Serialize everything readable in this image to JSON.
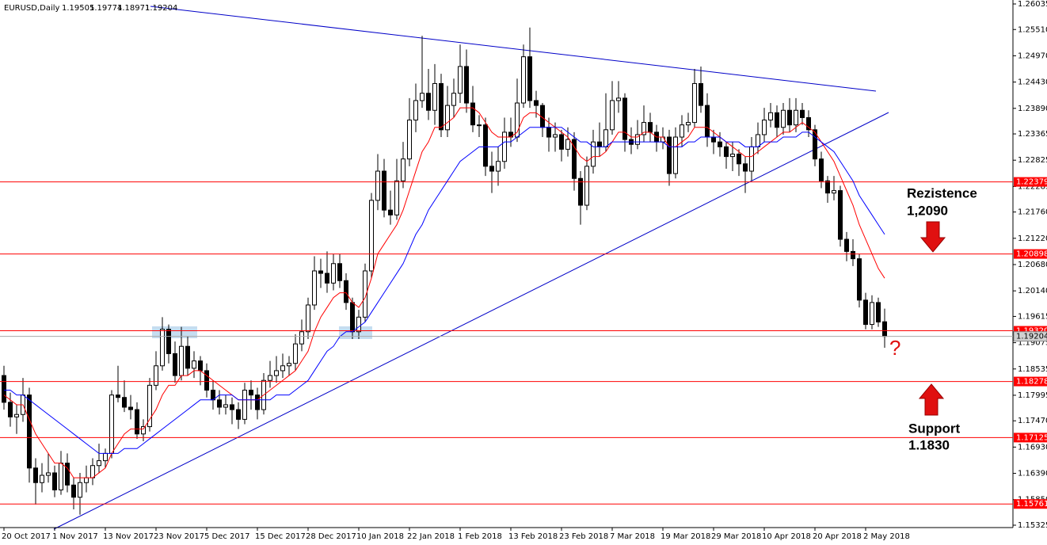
{
  "chart_data": {
    "type": "candlestick",
    "symbol": "EURUSD,Daily",
    "ylim": [
      1.15325,
      1.26035
    ],
    "yticks": [
      {
        "value": 1.26035,
        "label": "1.26035"
      },
      {
        "value": 1.2551,
        "label": "1.25510"
      },
      {
        "value": 1.2497,
        "label": "1.24970"
      },
      {
        "value": 1.2443,
        "label": "1.24430"
      },
      {
        "value": 1.2389,
        "label": "1.23890"
      },
      {
        "value": 1.23365,
        "label": "1.23365"
      },
      {
        "value": 1.22825,
        "label": "1.22825"
      },
      {
        "value": 1.22285,
        "label": "1.22285"
      },
      {
        "value": 1.2176,
        "label": "1.21760"
      },
      {
        "value": 1.2122,
        "label": "1.21220"
      },
      {
        "value": 1.2068,
        "label": "1.20680"
      },
      {
        "value": 1.2014,
        "label": "1.20140"
      },
      {
        "value": 1.19615,
        "label": "1.19615"
      },
      {
        "value": 1.19075,
        "label": "1.19075"
      },
      {
        "value": 1.18535,
        "label": "1.18535"
      },
      {
        "value": 1.17995,
        "label": "1.17995"
      },
      {
        "value": 1.1747,
        "label": "1.17470"
      },
      {
        "value": 1.1693,
        "label": "1.16930"
      },
      {
        "value": 1.1639,
        "label": "1.16390"
      },
      {
        "value": 1.1585,
        "label": "1.15850"
      },
      {
        "value": 1.15325,
        "label": "1.15325"
      }
    ],
    "levels": [
      1.22379,
      1.20898,
      {
        "value": 1.1932,
        "label": "1.19320"
      },
      1.18278,
      1.17125,
      1.15761
    ],
    "level_color": "#ff0000",
    "annotations": [
      "Rezistence",
      "1,2090",
      "Support",
      "1.1830",
      "?"
    ],
    "categories": [
      "20 Oct 2017",
      null,
      null,
      null,
      null,
      null,
      null,
      null,
      "1 Nov 2017",
      null,
      null,
      null,
      null,
      null,
      null,
      null,
      "13 Nov 2017",
      null,
      null,
      null,
      null,
      null,
      null,
      null,
      "23 Nov 2017",
      null,
      null,
      null,
      null,
      null,
      null,
      null,
      "5 Dec 2017",
      null,
      null,
      null,
      null,
      null,
      null,
      null,
      "15 Dec 2017",
      null,
      null,
      null,
      null,
      null,
      null,
      null,
      "28 Dec 2017",
      null,
      null,
      null,
      null,
      null,
      null,
      null,
      "10 Jan 2018",
      null,
      null,
      null,
      null,
      null,
      null,
      null,
      "22 Jan 2018",
      null,
      null,
      null,
      null,
      null,
      null,
      null,
      "1 Feb 2018",
      null,
      null,
      null,
      null,
      null,
      null,
      null,
      "13 Feb 2018",
      null,
      null,
      null,
      null,
      null,
      null,
      null,
      "23 Feb 2018",
      null,
      null,
      null,
      null,
      null,
      null,
      null,
      "7 Mar 2018",
      null,
      null,
      null,
      null,
      null,
      null,
      null,
      "19 Mar 2018",
      null,
      null,
      null,
      null,
      null,
      null,
      null,
      "29 Mar 2018",
      null,
      null,
      null,
      null,
      null,
      null,
      null,
      "10 Apr 2018",
      null,
      null,
      null,
      null,
      null,
      null,
      null,
      "20 Apr 2018",
      null,
      null,
      null,
      null,
      null,
      null,
      null,
      "2 May 2018",
      null,
      null,
      null
    ],
    "ohlc": [
      [
        1.184,
        1.186,
        1.177,
        1.1785
      ],
      [
        1.1785,
        1.1805,
        1.1735,
        1.1755
      ],
      [
        1.1755,
        1.178,
        1.172,
        1.176
      ],
      [
        1.176,
        1.1835,
        1.1745,
        1.18
      ],
      [
        1.18,
        1.1815,
        1.162,
        1.165
      ],
      [
        1.165,
        1.167,
        1.1575,
        1.162
      ],
      [
        1.162,
        1.166,
        1.16,
        1.1635
      ],
      [
        1.1635,
        1.168,
        1.162,
        1.164
      ],
      [
        1.164,
        1.1655,
        1.159,
        1.1605
      ],
      [
        1.1605,
        1.1685,
        1.1595,
        1.166
      ],
      [
        1.166,
        1.168,
        1.16,
        1.1615
      ],
      [
        1.1615,
        1.163,
        1.1565,
        1.159
      ],
      [
        1.159,
        1.164,
        1.1554,
        1.162
      ],
      [
        1.162,
        1.1655,
        1.16,
        1.163
      ],
      [
        1.163,
        1.167,
        1.1615,
        1.1655
      ],
      [
        1.1655,
        1.17,
        1.164,
        1.1665
      ],
      [
        1.1665,
        1.169,
        1.165,
        1.168
      ],
      [
        1.168,
        1.181,
        1.167,
        1.18
      ],
      [
        1.18,
        1.186,
        1.1785,
        1.1795
      ],
      [
        1.1795,
        1.183,
        1.1765,
        1.1775
      ],
      [
        1.1775,
        1.18,
        1.175,
        1.177
      ],
      [
        1.177,
        1.1785,
        1.171,
        1.172
      ],
      [
        1.172,
        1.175,
        1.1705,
        1.1735
      ],
      [
        1.1735,
        1.1835,
        1.1725,
        1.182
      ],
      [
        1.182,
        1.189,
        1.181,
        1.186
      ],
      [
        1.186,
        1.196,
        1.185,
        1.1935
      ],
      [
        1.1935,
        1.1945,
        1.1865,
        1.1885
      ],
      [
        1.1885,
        1.191,
        1.1825,
        1.184
      ],
      [
        1.184,
        1.194,
        1.183,
        1.19
      ],
      [
        1.19,
        1.192,
        1.184,
        1.1855
      ],
      [
        1.1855,
        1.189,
        1.1835,
        1.187
      ],
      [
        1.187,
        1.188,
        1.182,
        1.185
      ],
      [
        1.185,
        1.1865,
        1.1795,
        1.181
      ],
      [
        1.181,
        1.183,
        1.177,
        1.179
      ],
      [
        1.179,
        1.181,
        1.176,
        1.1775
      ],
      [
        1.1775,
        1.18,
        1.176,
        1.178
      ],
      [
        1.178,
        1.1795,
        1.174,
        1.177
      ],
      [
        1.177,
        1.1785,
        1.173,
        1.175
      ],
      [
        1.175,
        1.1825,
        1.174,
        1.181
      ],
      [
        1.181,
        1.183,
        1.177,
        1.18
      ],
      [
        1.18,
        1.1815,
        1.175,
        1.177
      ],
      [
        1.177,
        1.1845,
        1.176,
        1.183
      ],
      [
        1.183,
        1.187,
        1.1815,
        1.184
      ],
      [
        1.184,
        1.188,
        1.1825,
        1.185
      ],
      [
        1.185,
        1.1885,
        1.1835,
        1.186
      ],
      [
        1.186,
        1.188,
        1.184,
        1.1865
      ],
      [
        1.1865,
        1.1925,
        1.185,
        1.1905
      ],
      [
        1.1905,
        1.1955,
        1.189,
        1.193
      ],
      [
        1.193,
        1.2,
        1.1915,
        1.1985
      ],
      [
        1.1985,
        1.2085,
        1.1975,
        1.2055
      ],
      [
        1.2055,
        1.208,
        1.202,
        1.205
      ],
      [
        1.205,
        1.2095,
        1.201,
        1.203
      ],
      [
        1.203,
        1.209,
        1.2015,
        1.207
      ],
      [
        1.207,
        1.209,
        1.202,
        1.2035
      ],
      [
        1.2035,
        1.205,
        1.1975,
        1.199
      ],
      [
        1.199,
        1.2,
        1.1915,
        1.193
      ],
      [
        1.193,
        1.1975,
        1.1915,
        1.196
      ],
      [
        1.196,
        1.207,
        1.195,
        1.2055
      ],
      [
        1.2055,
        1.2215,
        1.204,
        1.22
      ],
      [
        1.22,
        1.2295,
        1.218,
        1.226
      ],
      [
        1.226,
        1.2285,
        1.2165,
        1.218
      ],
      [
        1.218,
        1.222,
        1.215,
        1.217
      ],
      [
        1.217,
        1.2285,
        1.216,
        1.224
      ],
      [
        1.224,
        1.232,
        1.2225,
        1.2285
      ],
      [
        1.2285,
        1.241,
        1.227,
        1.2365
      ],
      [
        1.2365,
        1.244,
        1.234,
        1.2405
      ],
      [
        1.2405,
        1.2538,
        1.239,
        1.242
      ],
      [
        1.242,
        1.247,
        1.2365,
        1.2385
      ],
      [
        1.2385,
        1.248,
        1.2355,
        1.244
      ],
      [
        1.244,
        1.246,
        1.233,
        1.2345
      ],
      [
        1.2345,
        1.2435,
        1.233,
        1.2395
      ],
      [
        1.2395,
        1.245,
        1.237,
        1.242
      ],
      [
        1.242,
        1.252,
        1.24,
        1.2475
      ],
      [
        1.2475,
        1.251,
        1.238,
        1.24
      ],
      [
        1.24,
        1.2435,
        1.234,
        1.2355
      ],
      [
        1.2355,
        1.2375,
        1.233,
        1.2355
      ],
      [
        1.2355,
        1.237,
        1.225,
        1.227
      ],
      [
        1.227,
        1.23,
        1.2215,
        1.226
      ],
      [
        1.226,
        1.231,
        1.223,
        1.228
      ],
      [
        1.228,
        1.237,
        1.2265,
        1.234
      ],
      [
        1.234,
        1.237,
        1.231,
        1.233
      ],
      [
        1.233,
        1.245,
        1.232,
        1.24
      ],
      [
        1.24,
        1.252,
        1.239,
        1.2495
      ],
      [
        1.2495,
        1.2555,
        1.239,
        1.2405
      ],
      [
        1.2405,
        1.2425,
        1.237,
        1.2395
      ],
      [
        1.2395,
        1.24,
        1.233,
        1.235
      ],
      [
        1.235,
        1.237,
        1.23,
        1.233
      ],
      [
        1.233,
        1.236,
        1.23,
        1.2335
      ],
      [
        1.2335,
        1.2345,
        1.228,
        1.2305
      ],
      [
        1.2305,
        1.235,
        1.229,
        1.2325
      ],
      [
        1.2325,
        1.234,
        1.222,
        1.2245
      ],
      [
        1.2245,
        1.226,
        1.215,
        1.219
      ],
      [
        1.219,
        1.229,
        1.218,
        1.227
      ],
      [
        1.227,
        1.2345,
        1.2255,
        1.232
      ],
      [
        1.232,
        1.236,
        1.229,
        1.231
      ],
      [
        1.231,
        1.242,
        1.23,
        1.2345
      ],
      [
        1.2345,
        1.2445,
        1.2335,
        1.2405
      ],
      [
        1.2405,
        1.2445,
        1.238,
        1.241
      ],
      [
        1.241,
        1.242,
        1.23,
        1.2325
      ],
      [
        1.2325,
        1.235,
        1.2295,
        1.2315
      ],
      [
        1.2315,
        1.2365,
        1.2305,
        1.2335
      ],
      [
        1.2335,
        1.2395,
        1.232,
        1.236
      ],
      [
        1.236,
        1.238,
        1.232,
        1.234
      ],
      [
        1.234,
        1.2355,
        1.23,
        1.232
      ],
      [
        1.232,
        1.235,
        1.2305,
        1.233
      ],
      [
        1.233,
        1.2345,
        1.223,
        1.2255
      ],
      [
        1.2255,
        1.235,
        1.2245,
        1.233
      ],
      [
        1.233,
        1.2375,
        1.231,
        1.2355
      ],
      [
        1.2355,
        1.238,
        1.234,
        1.236
      ],
      [
        1.236,
        1.247,
        1.235,
        1.244
      ],
      [
        1.244,
        1.2475,
        1.238,
        1.2395
      ],
      [
        1.2395,
        1.242,
        1.231,
        1.233
      ],
      [
        1.233,
        1.2345,
        1.2295,
        1.232
      ],
      [
        1.232,
        1.234,
        1.229,
        1.231
      ],
      [
        1.231,
        1.232,
        1.2265,
        1.229
      ],
      [
        1.229,
        1.232,
        1.226,
        1.2295
      ],
      [
        1.2295,
        1.2305,
        1.225,
        1.2275
      ],
      [
        1.2275,
        1.229,
        1.2215,
        1.226
      ],
      [
        1.226,
        1.233,
        1.224,
        1.231
      ],
      [
        1.231,
        1.236,
        1.2295,
        1.2335
      ],
      [
        1.2335,
        1.239,
        1.232,
        1.2365
      ],
      [
        1.2365,
        1.24,
        1.235,
        1.238
      ],
      [
        1.238,
        1.2395,
        1.233,
        1.235
      ],
      [
        1.235,
        1.24,
        1.2335,
        1.2385
      ],
      [
        1.2385,
        1.241,
        1.234,
        1.2355
      ],
      [
        1.2355,
        1.241,
        1.234,
        1.2385
      ],
      [
        1.2385,
        1.24,
        1.2355,
        1.237
      ],
      [
        1.237,
        1.2385,
        1.233,
        1.2345
      ],
      [
        1.2345,
        1.2355,
        1.227,
        1.2285
      ],
      [
        1.2285,
        1.23,
        1.2225,
        1.224
      ],
      [
        1.224,
        1.225,
        1.2195,
        1.2215
      ],
      [
        1.2215,
        1.225,
        1.22,
        1.222
      ],
      [
        1.222,
        1.223,
        1.2105,
        1.212
      ],
      [
        1.212,
        1.2135,
        1.2075,
        1.2095
      ],
      [
        1.2095,
        1.212,
        1.2065,
        1.208
      ],
      [
        1.208,
        1.209,
        1.198,
        1.1995
      ],
      [
        1.1995,
        1.201,
        1.1935,
        1.1945
      ],
      [
        1.1945,
        1.2005,
        1.1935,
        1.199
      ],
      [
        1.199,
        1.2,
        1.194,
        1.195
      ],
      [
        1.19505,
        1.19774,
        1.18971,
        1.19204
      ]
    ],
    "series": [
      {
        "color": "#ff0000",
        "values": [
          1.18,
          1.179,
          1.178,
          1.178,
          1.175,
          1.172,
          1.17,
          1.168,
          1.166,
          1.166,
          1.165,
          1.163,
          1.163,
          1.163,
          1.163,
          1.164,
          1.165,
          1.168,
          1.17,
          1.172,
          1.173,
          1.173,
          1.173,
          1.175,
          1.177,
          1.18,
          1.182,
          1.182,
          1.184,
          1.184,
          1.185,
          1.185,
          1.184,
          1.183,
          1.182,
          1.181,
          1.18,
          1.179,
          1.179,
          1.179,
          1.179,
          1.18,
          1.181,
          1.182,
          1.183,
          1.184,
          1.185,
          1.187,
          1.189,
          1.193,
          1.196,
          1.198,
          1.2,
          1.201,
          1.201,
          1.199,
          1.198,
          1.2,
          1.204,
          1.209,
          1.211,
          1.213,
          1.215,
          1.218,
          1.222,
          1.226,
          1.23,
          1.232,
          1.235,
          1.235,
          1.236,
          1.237,
          1.239,
          1.239,
          1.239,
          1.238,
          1.236,
          1.234,
          1.233,
          1.233,
          1.233,
          1.234,
          1.237,
          1.238,
          1.238,
          1.237,
          1.236,
          1.235,
          1.234,
          1.233,
          1.231,
          1.229,
          1.228,
          1.229,
          1.229,
          1.23,
          1.232,
          1.234,
          1.234,
          1.233,
          1.233,
          1.234,
          1.234,
          1.233,
          1.233,
          1.231,
          1.231,
          1.232,
          1.233,
          1.235,
          1.235,
          1.235,
          1.234,
          1.233,
          1.232,
          1.231,
          1.23,
          1.229,
          1.229,
          1.23,
          1.231,
          1.232,
          1.233,
          1.234,
          1.234,
          1.235,
          1.236,
          1.235,
          1.234,
          1.232,
          1.23,
          1.228,
          1.225,
          1.222,
          1.219,
          1.215,
          1.212,
          1.209,
          1.206,
          1.204
        ]
      },
      {
        "color": "#0000ff",
        "values": [
          1.181,
          1.181,
          1.18,
          1.18,
          1.179,
          1.178,
          1.177,
          1.176,
          1.175,
          1.174,
          1.173,
          1.172,
          1.171,
          1.17,
          1.169,
          1.168,
          1.168,
          1.168,
          1.168,
          1.169,
          1.169,
          1.169,
          1.17,
          1.171,
          1.172,
          1.173,
          1.174,
          1.175,
          1.176,
          1.177,
          1.178,
          1.179,
          1.179,
          1.179,
          1.18,
          1.18,
          1.18,
          1.179,
          1.179,
          1.179,
          1.179,
          1.179,
          1.179,
          1.18,
          1.18,
          1.18,
          1.181,
          1.182,
          1.183,
          1.185,
          1.187,
          1.189,
          1.19,
          1.192,
          1.193,
          1.193,
          1.194,
          1.195,
          1.197,
          1.199,
          1.201,
          1.203,
          1.205,
          1.207,
          1.21,
          1.213,
          1.215,
          1.218,
          1.22,
          1.222,
          1.224,
          1.226,
          1.228,
          1.229,
          1.23,
          1.231,
          1.231,
          1.231,
          1.231,
          1.232,
          1.232,
          1.233,
          1.234,
          1.235,
          1.235,
          1.235,
          1.235,
          1.235,
          1.235,
          1.234,
          1.233,
          1.232,
          1.232,
          1.231,
          1.231,
          1.231,
          1.232,
          1.232,
          1.232,
          1.232,
          1.232,
          1.232,
          1.232,
          1.232,
          1.232,
          1.231,
          1.231,
          1.231,
          1.232,
          1.232,
          1.233,
          1.233,
          1.233,
          1.233,
          1.232,
          1.232,
          1.232,
          1.231,
          1.231,
          1.231,
          1.232,
          1.232,
          1.232,
          1.233,
          1.233,
          1.233,
          1.234,
          1.234,
          1.233,
          1.232,
          1.231,
          1.23,
          1.228,
          1.226,
          1.224,
          1.221,
          1.219,
          1.217,
          1.215,
          1.213
        ]
      }
    ]
  }
}
